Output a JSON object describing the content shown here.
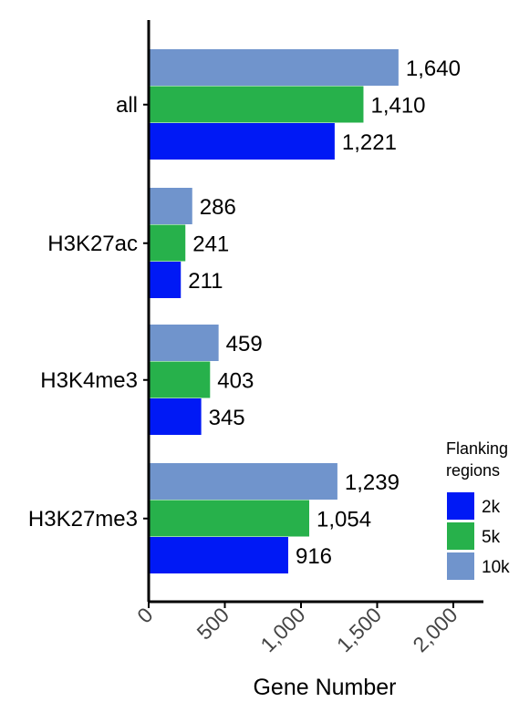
{
  "chart_data": {
    "type": "bar",
    "orientation": "horizontal",
    "categories": [
      "all",
      "H3K27ac",
      "H3K4me3",
      "H3K27me3"
    ],
    "series": [
      {
        "name": "10k",
        "color": "#7094cc",
        "values": [
          1640,
          286,
          459,
          1239
        ],
        "labels": [
          "1,640",
          "286",
          "459",
          "1,239"
        ]
      },
      {
        "name": "5k",
        "color": "#27b14b",
        "values": [
          1410,
          241,
          403,
          1054
        ],
        "labels": [
          "1,410",
          "241",
          "403",
          "1,054"
        ]
      },
      {
        "name": "2k",
        "color": "#0019f5",
        "values": [
          1221,
          211,
          345,
          916
        ],
        "labels": [
          "1,221",
          "211",
          "345",
          "916"
        ]
      }
    ],
    "xlim": [
      0,
      2000
    ],
    "xticks": [
      0,
      500,
      1000,
      1500,
      2000
    ],
    "xtick_labels": [
      "0",
      "500",
      "1,000",
      "1,500",
      "2,000"
    ],
    "xlabel": "Gene Number",
    "ylabel": "",
    "grid": false,
    "legend": {
      "title": "Flanking regions",
      "title_lines": [
        "Flanking",
        "regions"
      ],
      "placement": "bottom-right",
      "items": [
        {
          "label": "2k",
          "color": "#0019f5"
        },
        {
          "label": "5k",
          "color": "#27b14b"
        },
        {
          "label": "10k",
          "color": "#7094cc"
        }
      ]
    }
  }
}
